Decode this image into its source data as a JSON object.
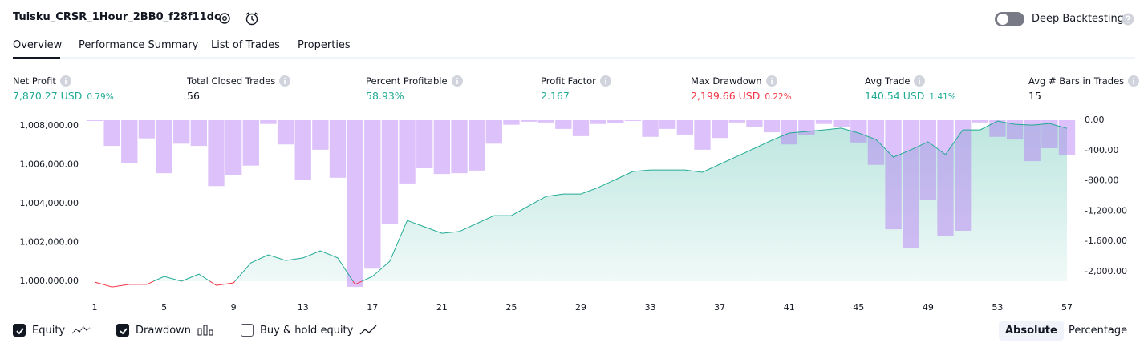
{
  "header": {
    "title": "Tuisku_CRSR_1Hour_2BB0_f28f11dc",
    "toggle": "Deep Backtesting"
  },
  "tabs": [
    "Overview",
    "Performance Summary",
    "List of Trades",
    "Properties"
  ],
  "metrics": [
    {
      "label": "Net Profit",
      "value": "7,870.27 USD",
      "percent": "0.79%",
      "tone": "pos"
    },
    {
      "label": "Total Closed Trades",
      "value": "56",
      "tone": "plain"
    },
    {
      "label": "Percent Profitable",
      "value": "58.93%",
      "tone": "pos"
    },
    {
      "label": "Profit Factor",
      "value": "2.167",
      "tone": "pos"
    },
    {
      "label": "Max Drawdown",
      "value": "2,199.66 USD",
      "percent": "0.22%",
      "tone": "neg"
    },
    {
      "label": "Avg Trade",
      "value": "140.54 USD",
      "percent": "1.41%",
      "tone": "pos"
    },
    {
      "label": "Avg # Bars in Trades",
      "value": "15",
      "tone": "plain"
    }
  ],
  "chart_data": {
    "type": "line",
    "x": [
      1,
      2,
      3,
      4,
      5,
      6,
      7,
      8,
      9,
      10,
      11,
      12,
      13,
      14,
      15,
      16,
      17,
      18,
      19,
      20,
      21,
      22,
      23,
      24,
      25,
      26,
      27,
      28,
      29,
      30,
      31,
      32,
      33,
      34,
      35,
      36,
      37,
      38,
      39,
      40,
      41,
      42,
      43,
      44,
      45,
      46,
      47,
      48,
      49,
      50,
      51,
      52,
      53,
      54,
      55,
      56,
      57
    ],
    "xlim": [
      1,
      57
    ],
    "xticks": [
      1,
      5,
      9,
      13,
      17,
      21,
      25,
      29,
      33,
      37,
      41,
      45,
      49,
      53,
      57
    ],
    "ylim": [
      999630,
      1008290
    ],
    "yticks": [
      {
        "value": 1000000,
        "label": "1,000,000.00"
      },
      {
        "value": 1002000,
        "label": "1,002,000.00"
      },
      {
        "value": 1004000,
        "label": "1,004,000.00"
      },
      {
        "value": 1006000,
        "label": "1,006,000.00"
      },
      {
        "value": 1008000,
        "label": "1,008,000.00"
      }
    ],
    "y2lim": [
      -2222,
      0
    ],
    "y2ticks": [
      {
        "value": 0,
        "label": "0.00"
      },
      {
        "value": -400,
        "label": "-400.00"
      },
      {
        "value": -800,
        "label": "-800.00"
      },
      {
        "value": -1200,
        "label": "-1,200.00"
      },
      {
        "value": -1600,
        "label": "-1,600.00"
      },
      {
        "value": -2000,
        "label": "-2,000.00"
      }
    ],
    "series": [
      {
        "name": "Equity",
        "type": "area",
        "color": "#22ab94",
        "below_color": "#f23645",
        "checked": true,
        "values": [
          999960,
          999710,
          999840,
          999840,
          1000250,
          1000000,
          1000370,
          999790,
          999920,
          1000950,
          1001360,
          1001070,
          1001200,
          1001570,
          1001200,
          999840,
          1000250,
          1001030,
          1003130,
          1002800,
          1002470,
          1002560,
          1002970,
          1003380,
          1003380,
          1003880,
          1004370,
          1004490,
          1004490,
          1004820,
          1005240,
          1005650,
          1005730,
          1005730,
          1005730,
          1005610,
          1006020,
          1006430,
          1006840,
          1007260,
          1007630,
          1007710,
          1007790,
          1007880,
          1007630,
          1007300,
          1006390,
          1006760,
          1007180,
          1006520,
          1007790,
          1007790,
          1008250,
          1008080,
          1008040,
          1008120,
          1007870
        ]
      },
      {
        "name": "Drawdown",
        "type": "bar",
        "axis": "y2",
        "color": "#b276f5",
        "checked": true,
        "values": [
          -10,
          -340,
          -570,
          -240,
          -700,
          -310,
          -340,
          -870,
          -730,
          -600,
          -50,
          -320,
          -790,
          -390,
          -760,
          -2200,
          -1960,
          -1375,
          -835,
          -635,
          -710,
          -700,
          -665,
          -310,
          -60,
          -20,
          -30,
          -115,
          -210,
          -50,
          -40,
          -10,
          -220,
          -115,
          -190,
          -390,
          -235,
          -30,
          -85,
          -160,
          -320,
          -190,
          -50,
          -85,
          -295,
          -590,
          -1440,
          -1690,
          -1050,
          -1525,
          -1460,
          -30,
          -220,
          -255,
          -540,
          -370,
          -465
        ]
      }
    ],
    "extra_legend": "Buy & hold equity",
    "extra_checked": false,
    "scale_modes": [
      "Absolute",
      "Percentage"
    ]
  }
}
